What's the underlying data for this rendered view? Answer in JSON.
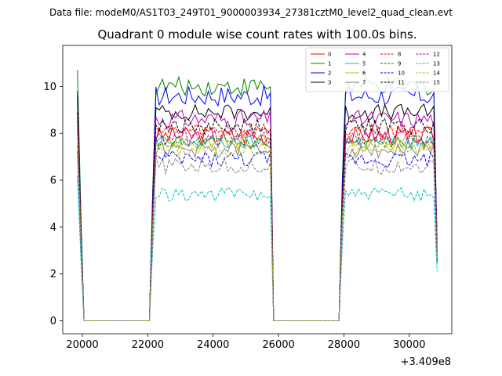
{
  "chart_data": {
    "type": "line",
    "suptitle": "Data file: modeM0/AS1T03_249T01_9000003934_27381cztM0_level2_quad_clean.evt",
    "title": "Quadrant 0 module wise count rates with 100.0s bins.",
    "xlabel": "",
    "ylabel": "",
    "x_offset_label": "+3.409e8",
    "xlim": [
      19400,
      31300
    ],
    "ylim": [
      -0.55,
      11.75
    ],
    "x_ticks": [
      20000,
      22000,
      24000,
      26000,
      28000,
      30000
    ],
    "x_tick_labels": [
      "20000",
      "22000",
      "24000",
      "26000",
      "28000",
      "30000"
    ],
    "y_ticks": [
      0,
      2,
      4,
      6,
      8,
      10
    ],
    "y_tick_labels": [
      "0",
      "2",
      "4",
      "6",
      "8",
      "10"
    ],
    "grid": false,
    "legend_position": "top-right",
    "segments": [
      {
        "start": 19850,
        "step": 100,
        "n": 3
      },
      {
        "start": 20050,
        "step": 100,
        "n": 21
      },
      {
        "start": 22150,
        "step": 100,
        "n": 36
      },
      {
        "start": 25750,
        "step": 100,
        "n": 1
      },
      {
        "start": 25850,
        "step": 100,
        "n": 21
      },
      {
        "start": 27950,
        "step": 100,
        "n": 30
      }
    ],
    "series": [
      {
        "name": "0",
        "color": "#ff0000",
        "dash": "solid",
        "level": 7.9,
        "amp": 0.4,
        "first": 9.3,
        "last": 3.2
      },
      {
        "name": "1",
        "color": "#008000",
        "dash": "solid",
        "level": 10.0,
        "amp": 0.4,
        "first": 10.7,
        "last": 3.0
      },
      {
        "name": "2",
        "color": "#0000ff",
        "dash": "solid",
        "level": 9.6,
        "amp": 0.45,
        "first": 9.8,
        "last": 3.4
      },
      {
        "name": "3",
        "color": "#000000",
        "dash": "solid",
        "level": 8.9,
        "amp": 0.35,
        "first": 9.6,
        "last": 2.5
      },
      {
        "name": "4",
        "color": "#bf00bf",
        "dash": "solid",
        "level": 8.6,
        "amp": 0.4,
        "first": 9.0,
        "last": 3.6
      },
      {
        "name": "5",
        "color": "#00bfbf",
        "dash": "solid",
        "level": 7.6,
        "amp": 0.3,
        "first": 8.8,
        "last": 3.3
      },
      {
        "name": "6",
        "color": "#bfbf00",
        "dash": "solid",
        "level": 7.6,
        "amp": 0.35,
        "first": 8.5,
        "last": 3.1
      },
      {
        "name": "7",
        "color": "#808080",
        "dash": "solid",
        "level": 7.3,
        "amp": 0.35,
        "first": 8.2,
        "last": 3.0
      },
      {
        "name": "8",
        "color": "#ff0000",
        "dash": "dashed",
        "level": 8.1,
        "amp": 0.35,
        "first": 9.2,
        "last": 3.0
      },
      {
        "name": "9",
        "color": "#008000",
        "dash": "dashed",
        "level": 7.6,
        "amp": 0.3,
        "first": 8.6,
        "last": 2.8
      },
      {
        "name": "10",
        "color": "#0000ff",
        "dash": "dashed",
        "level": 6.9,
        "amp": 0.35,
        "first": 7.2,
        "last": 2.7
      },
      {
        "name": "11",
        "color": "#000000",
        "dash": "dashed",
        "level": 8.3,
        "amp": 0.35,
        "first": 8.9,
        "last": 2.9
      },
      {
        "name": "12",
        "color": "#bf00bf",
        "dash": "dashed",
        "level": 7.8,
        "amp": 0.35,
        "first": 8.4,
        "last": 3.0
      },
      {
        "name": "13",
        "color": "#00bfbf",
        "dash": "dashed",
        "level": 5.4,
        "amp": 0.3,
        "first": 6.2,
        "last": 2.1
      },
      {
        "name": "14",
        "color": "#bfbf00",
        "dash": "dashed",
        "level": 7.3,
        "amp": 0.3,
        "first": 7.9,
        "last": 2.8
      },
      {
        "name": "15",
        "color": "#808080",
        "dash": "dashed",
        "level": 6.6,
        "amp": 0.35,
        "first": 7.5,
        "last": 2.6
      }
    ]
  }
}
